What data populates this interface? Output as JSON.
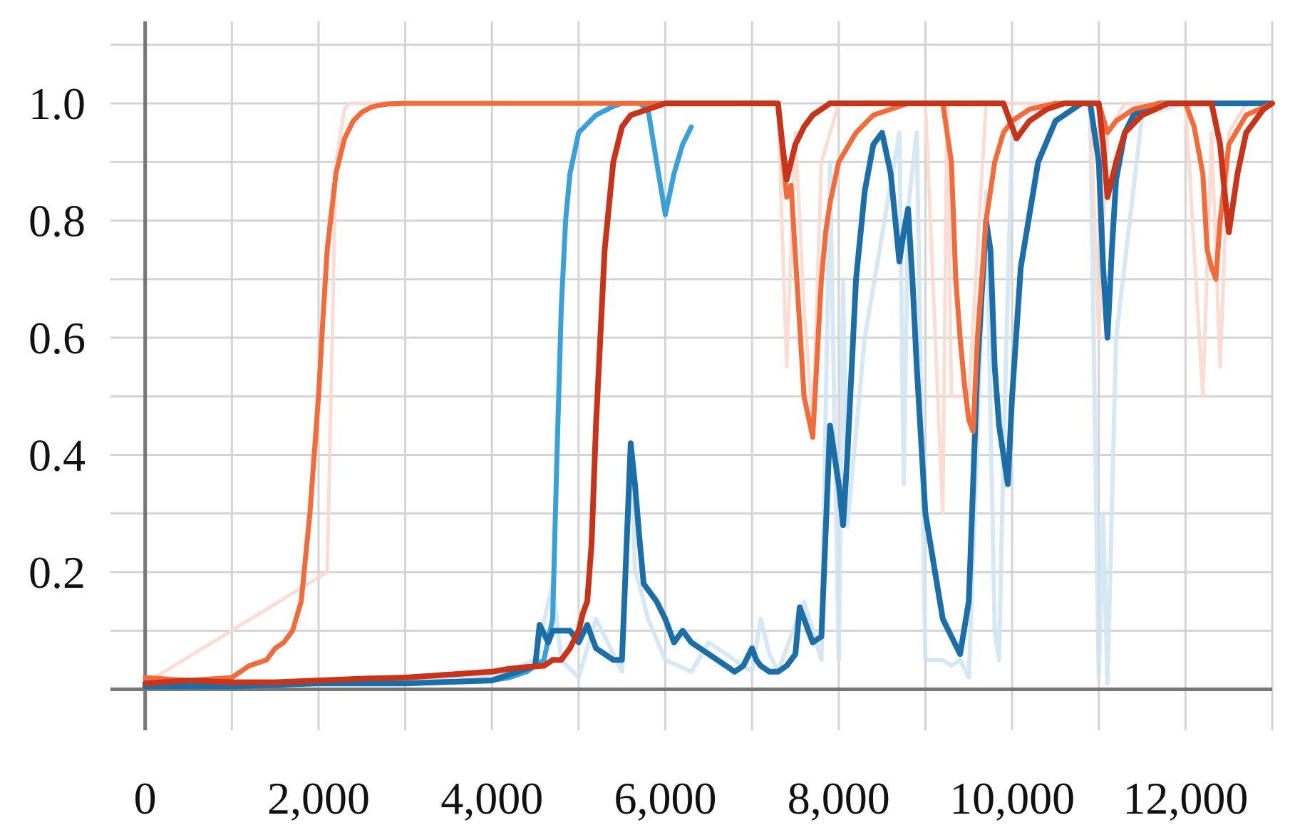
{
  "chart_data": {
    "type": "line",
    "title": "",
    "xlabel": "",
    "ylabel": "",
    "xlim": [
      -400,
      13000
    ],
    "ylim": [
      -0.07,
      1.14
    ],
    "x_ticks": [
      0,
      2000,
      4000,
      6000,
      8000,
      10000,
      12000
    ],
    "x_tick_labels": [
      "0",
      "2,000",
      "4,000",
      "6,000",
      "8,000",
      "10,000",
      "12,000"
    ],
    "y_ticks": [
      0.2,
      0.4,
      0.6,
      0.8,
      1.0
    ],
    "y_tick_labels": [
      "0.2",
      "0.4",
      "0.6",
      "0.8",
      "1.0"
    ],
    "grid": true,
    "legend": "none",
    "series": [
      {
        "color": "#cfe4f2",
        "width": 6,
        "opacity": 0.85,
        "x": [
          0,
          2000,
          4000,
          4500,
          4700,
          4800,
          5000,
          5200,
          5500,
          5600,
          5650,
          5700,
          5800,
          6000,
          6300,
          6500,
          7000,
          7100,
          7200,
          7300,
          7600,
          7800,
          7900,
          8000,
          8050,
          8100,
          8300,
          8700,
          8750,
          8800,
          8900,
          9000,
          9100,
          9200,
          9300,
          9400,
          9500,
          9700,
          9800,
          9850,
          9900,
          10000,
          10100,
          10500,
          10900,
          11000,
          11050,
          11100,
          11200,
          11500,
          12000,
          12500,
          13000
        ],
        "y": [
          0.01,
          0.01,
          0.02,
          0.05,
          0.18,
          0.05,
          0.02,
          0.12,
          0.03,
          0.42,
          0.2,
          0.18,
          0.12,
          0.05,
          0.03,
          0.08,
          0.03,
          0.12,
          0.06,
          0.03,
          0.15,
          0.05,
          0.9,
          0.05,
          0.7,
          0.28,
          0.6,
          0.95,
          0.35,
          0.82,
          0.95,
          0.05,
          0.05,
          0.05,
          0.04,
          0.05,
          0.02,
          0.85,
          0.1,
          0.05,
          0.4,
          0.95,
          0.98,
          1.0,
          1.0,
          0.02,
          0.3,
          0.01,
          0.6,
          0.98,
          1.0,
          1.0,
          1.0
        ]
      },
      {
        "color": "#fcd9cf",
        "width": 5,
        "opacity": 0.9,
        "x": [
          0,
          2100,
          2200,
          2300,
          2350,
          3000,
          7300,
          7400,
          7500,
          7600,
          7700,
          7800,
          8000,
          9000,
          9200,
          9250,
          9300,
          9500,
          9700,
          10000,
          10900,
          11000,
          11100,
          11300,
          12000,
          12200,
          12300,
          12400,
          12500,
          12700,
          13000
        ],
        "y": [
          0.01,
          0.2,
          0.9,
          0.99,
          1.0,
          1.0,
          1.0,
          0.55,
          0.95,
          0.65,
          0.45,
          0.9,
          1.0,
          1.0,
          0.3,
          1.0,
          0.5,
          0.5,
          1.0,
          1.0,
          1.0,
          0.6,
          0.95,
          1.0,
          1.0,
          0.5,
          0.95,
          0.55,
          0.95,
          1.0,
          1.0
        ]
      },
      {
        "color": "#3aa0d8",
        "width": 7,
        "opacity": 1,
        "x": [
          0,
          1000,
          2000,
          3000,
          4000,
          4200,
          4400,
          4600,
          4700,
          4750,
          4800,
          4850,
          4900,
          5000,
          5200,
          5400,
          5500,
          5600,
          5700,
          5800,
          5900,
          6000,
          6100,
          6200,
          6300
        ],
        "y": [
          0.01,
          0.01,
          0.01,
          0.01,
          0.015,
          0.02,
          0.03,
          0.05,
          0.12,
          0.4,
          0.65,
          0.8,
          0.88,
          0.95,
          0.98,
          0.995,
          1.0,
          1.0,
          1.0,
          0.99,
          0.9,
          0.81,
          0.88,
          0.93,
          0.96
        ]
      },
      {
        "color": "#1c6ea8",
        "width": 8,
        "opacity": 1,
        "x": [
          0,
          1000,
          2000,
          3000,
          4000,
          4500,
          4550,
          4650,
          4700,
          4800,
          4900,
          5000,
          5100,
          5200,
          5300,
          5400,
          5500,
          5600,
          5650,
          5700,
          5750,
          5800,
          5900,
          6000,
          6100,
          6200,
          6300,
          6400,
          6500,
          6600,
          6700,
          6800,
          6900,
          7000,
          7050,
          7100,
          7200,
          7300,
          7400,
          7500,
          7550,
          7600,
          7700,
          7800,
          7900,
          8000,
          8050,
          8100,
          8200,
          8300,
          8400,
          8500,
          8600,
          8700,
          8750,
          8800,
          8850,
          8900,
          9000,
          9200,
          9400,
          9500,
          9600,
          9700,
          9750,
          9800,
          9850,
          9900,
          9950,
          10000,
          10100,
          10300,
          10500,
          10700,
          10800,
          10900,
          11000,
          11050,
          11100,
          11150,
          11200,
          11300,
          11400,
          11500,
          11700,
          12000,
          12500,
          13000
        ],
        "y": [
          0.005,
          0.005,
          0.01,
          0.01,
          0.015,
          0.04,
          0.11,
          0.08,
          0.1,
          0.1,
          0.1,
          0.08,
          0.11,
          0.07,
          0.06,
          0.05,
          0.05,
          0.42,
          0.35,
          0.26,
          0.18,
          0.17,
          0.15,
          0.12,
          0.08,
          0.1,
          0.08,
          0.07,
          0.06,
          0.05,
          0.04,
          0.03,
          0.04,
          0.07,
          0.05,
          0.04,
          0.03,
          0.03,
          0.04,
          0.06,
          0.14,
          0.12,
          0.08,
          0.09,
          0.45,
          0.35,
          0.28,
          0.4,
          0.7,
          0.85,
          0.93,
          0.95,
          0.88,
          0.73,
          0.78,
          0.82,
          0.7,
          0.55,
          0.3,
          0.12,
          0.06,
          0.15,
          0.55,
          0.8,
          0.75,
          0.55,
          0.45,
          0.4,
          0.35,
          0.5,
          0.72,
          0.9,
          0.97,
          0.99,
          1.0,
          1.0,
          0.9,
          0.72,
          0.6,
          0.75,
          0.87,
          0.95,
          0.98,
          0.99,
          1.0,
          1.0,
          1.0,
          1.0
        ]
      },
      {
        "color": "#f26b3a",
        "width": 7,
        "opacity": 1,
        "x": [
          0,
          500,
          1000,
          1200,
          1400,
          1500,
          1600,
          1700,
          1800,
          1900,
          2000,
          2050,
          2100,
          2200,
          2300,
          2400,
          2500,
          2600,
          2700,
          2800,
          3000,
          3500,
          4000,
          5000,
          6000,
          7000,
          7300,
          7350,
          7400,
          7450,
          7500,
          7550,
          7600,
          7700,
          7800,
          7850,
          7900,
          8000,
          8200,
          8400,
          8600,
          8800,
          9000,
          9200,
          9300,
          9350,
          9400,
          9450,
          9500,
          9550,
          9600,
          9700,
          9800,
          9900,
          10000,
          10200,
          10500,
          10800,
          11000,
          11100,
          11200,
          11400,
          11700,
          12000,
          12100,
          12200,
          12250,
          12300,
          12350,
          12400,
          12500,
          12700,
          13000
        ],
        "y": [
          0.02,
          0.015,
          0.02,
          0.04,
          0.05,
          0.07,
          0.08,
          0.1,
          0.15,
          0.3,
          0.5,
          0.63,
          0.75,
          0.88,
          0.94,
          0.97,
          0.985,
          0.993,
          0.997,
          0.999,
          1.0,
          1.0,
          1.0,
          1.0,
          1.0,
          1.0,
          1.0,
          0.92,
          0.84,
          0.86,
          0.74,
          0.62,
          0.5,
          0.43,
          0.7,
          0.78,
          0.83,
          0.9,
          0.95,
          0.98,
          0.99,
          1.0,
          1.0,
          1.0,
          0.9,
          0.7,
          0.6,
          0.52,
          0.46,
          0.44,
          0.6,
          0.8,
          0.9,
          0.95,
          0.97,
          0.99,
          1.0,
          1.0,
          1.0,
          0.95,
          0.97,
          0.99,
          1.0,
          1.0,
          0.96,
          0.88,
          0.75,
          0.72,
          0.7,
          0.8,
          0.93,
          0.98,
          1.0
        ]
      },
      {
        "color": "#c8341a",
        "width": 8,
        "opacity": 1,
        "x": [
          0,
          500,
          1000,
          1500,
          2000,
          2500,
          3000,
          3500,
          4000,
          4200,
          4400,
          4600,
          4700,
          4800,
          4900,
          5000,
          5050,
          5100,
          5150,
          5200,
          5300,
          5400,
          5500,
          5600,
          5800,
          6000,
          6500,
          7000,
          7300,
          7350,
          7400,
          7450,
          7500,
          7600,
          7700,
          7800,
          7900,
          8000,
          8500,
          9000,
          9500,
          9900,
          10000,
          10050,
          10100,
          10200,
          10400,
          10600,
          10800,
          11000,
          11050,
          11100,
          11200,
          11300,
          11500,
          11800,
          12000,
          12300,
          12400,
          12450,
          12500,
          12600,
          12700,
          12900,
          13000
        ],
        "y": [
          0.01,
          0.015,
          0.012,
          0.012,
          0.015,
          0.018,
          0.02,
          0.025,
          0.03,
          0.035,
          0.038,
          0.04,
          0.05,
          0.05,
          0.07,
          0.1,
          0.13,
          0.15,
          0.25,
          0.45,
          0.75,
          0.9,
          0.96,
          0.98,
          0.99,
          1.0,
          1.0,
          1.0,
          1.0,
          0.93,
          0.87,
          0.9,
          0.93,
          0.96,
          0.98,
          0.99,
          1.0,
          1.0,
          1.0,
          1.0,
          1.0,
          1.0,
          0.96,
          0.94,
          0.95,
          0.97,
          0.99,
          1.0,
          1.0,
          1.0,
          0.93,
          0.84,
          0.9,
          0.95,
          0.98,
          1.0,
          1.0,
          1.0,
          0.93,
          0.85,
          0.78,
          0.88,
          0.95,
          0.99,
          1.0
        ]
      }
    ]
  }
}
